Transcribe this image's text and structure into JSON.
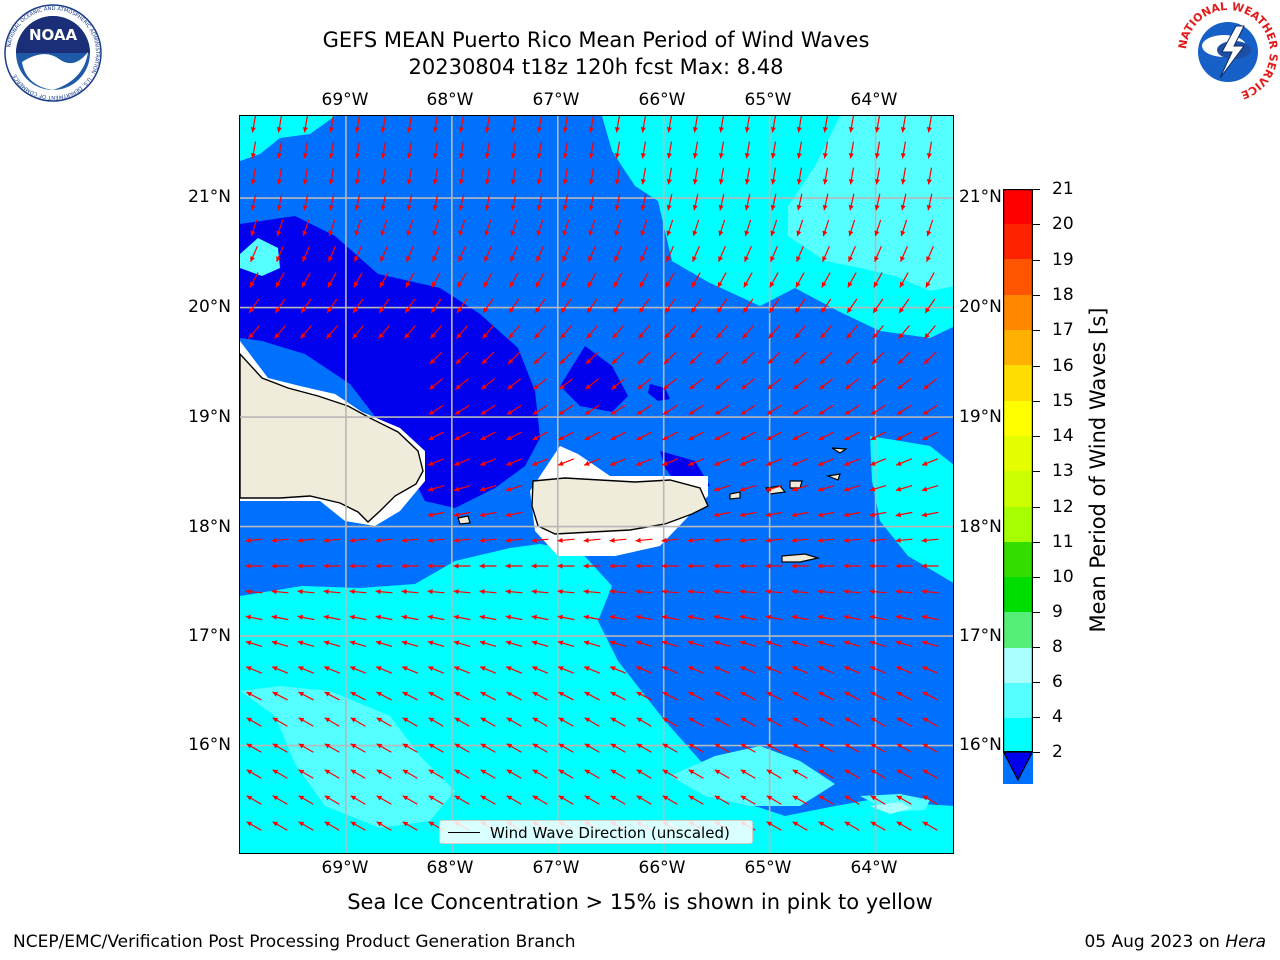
{
  "title": {
    "line1": "GEFS MEAN Puerto Rico Mean Period of Wind Waves",
    "line2": "20230804 t18z 120h fcst   Max: 8.48"
  },
  "logos": {
    "left": {
      "name": "noaa-logo",
      "text": "NOAA",
      "ring_text": "NATIONAL OCEANIC AND ATMOSPHERIC ADMINISTRATION · U.S. DEPARTMENT OF COMMERCE"
    },
    "right": {
      "name": "nws-logo",
      "ring_text": "NATIONAL WEATHER SERVICE"
    }
  },
  "map": {
    "extent": {
      "lon": [
        -70.0,
        -63.25
      ],
      "lat": [
        15.0,
        21.75
      ]
    },
    "lon_ticks": [
      "69°W",
      "68°W",
      "67°W",
      "66°W",
      "65°W",
      "64°W"
    ],
    "lat_ticks": [
      "21°N",
      "20°N",
      "19°N",
      "18°N",
      "17°N",
      "16°N"
    ],
    "grid": true,
    "arrow_color": "#ff0000",
    "land_color": "#efecdc",
    "legend": "Wind Wave Direction (unscaled)",
    "legend_placement": "bottom-center"
  },
  "colorbar": {
    "title": "Mean Period of Wind Waves [s]",
    "labels": [
      "21",
      "20",
      "19",
      "18",
      "17",
      "16",
      "15",
      "14",
      "13",
      "12",
      "11",
      "10",
      "9",
      "8",
      "6",
      "4",
      "2"
    ],
    "colors": [
      "#ff0000",
      "#ff2200",
      "#ff5500",
      "#ff8800",
      "#ffb000",
      "#ffdd00",
      "#ffff00",
      "#e6ff00",
      "#ccff00",
      "#a6ff00",
      "#55ee00",
      "#00dd00",
      "#33ee33",
      "#66ff99",
      "#aaffff",
      "#55ffff",
      "#00ffff",
      "#0070ff",
      "#0000ee"
    ],
    "extend_min_color": "#0000ee"
  },
  "period_colors": {
    "lt2": "#0000ee",
    "2to4": "#0070ff",
    "4to6": "#00ffff",
    "6to8": "#55ffff",
    "8to9": "#aaffff"
  },
  "note": "Sea Ice Concentration > 15% is shown in pink to yellow",
  "footer": {
    "left": "NCEP/EMC/Verification Post Processing Product Generation Branch",
    "date": "05 Aug 2023 on",
    "host": "Hera"
  }
}
